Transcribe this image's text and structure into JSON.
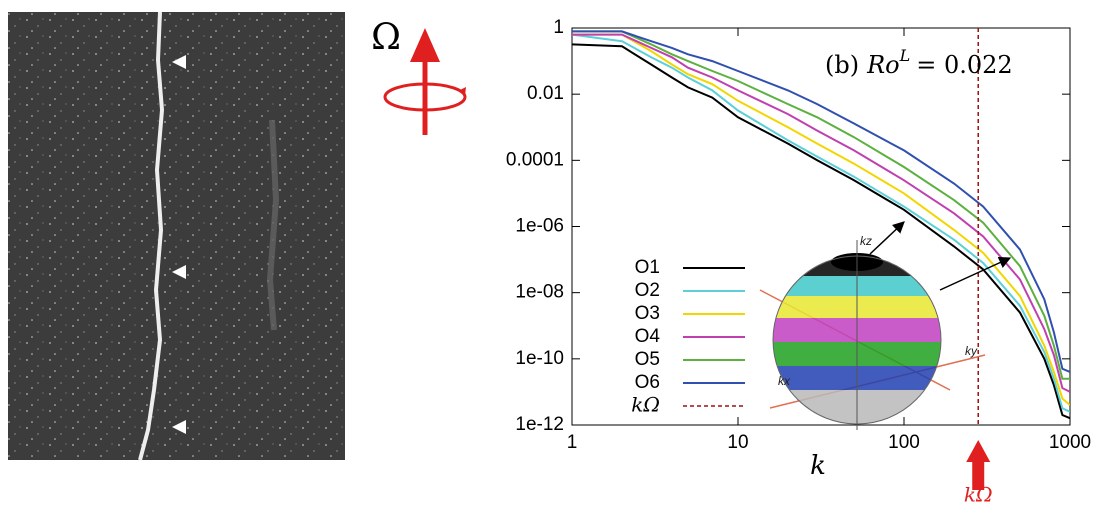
{
  "figure": {
    "omega_label": "Ω"
  },
  "chart_data": {
    "type": "line",
    "annotation": {
      "prefix": "(b)",
      "symbol": "Ro",
      "superscript": "L",
      "text": "= 0.022"
    },
    "x_label": "k",
    "xscale": "log",
    "yscale": "log",
    "xlim": [
      1,
      1000
    ],
    "ylim": [
      1e-12,
      1
    ],
    "xticks": [
      1,
      10,
      100,
      1000
    ],
    "yticks": [
      {
        "value": 1e-12,
        "label": "1e-12"
      },
      {
        "value": 1e-10,
        "label": "1e-10"
      },
      {
        "value": 1e-08,
        "label": "1e-08"
      },
      {
        "value": 1e-06,
        "label": "1e-06"
      },
      0.0001,
      0.01,
      1
    ],
    "x": [
      1,
      2,
      3,
      4,
      5,
      7,
      10,
      20,
      30,
      50,
      100,
      200,
      300,
      500,
      700,
      800,
      900,
      1000
    ],
    "series": [
      {
        "name": "O1",
        "color": "#000000",
        "values": [
          0.32,
          0.28,
          0.079,
          0.032,
          0.016,
          0.0079,
          0.002,
          0.00032,
          0.0001,
          2.5e-05,
          3.2e-06,
          2.5e-07,
          5e-08,
          2.5e-09,
          1e-10,
          1.6e-11,
          2e-12,
          1.6e-12
        ]
      },
      {
        "name": "O2",
        "color": "#5cd0d8",
        "values": [
          0.63,
          0.4,
          0.13,
          0.063,
          0.032,
          0.013,
          0.0032,
          0.0004,
          0.00013,
          3.2e-05,
          4e-06,
          4e-07,
          7.9e-08,
          4e-09,
          1.6e-10,
          2.5e-11,
          3.2e-12,
          2.5e-12
        ]
      },
      {
        "name": "O3",
        "color": "#f2d600",
        "values": [
          0.63,
          0.63,
          0.2,
          0.079,
          0.04,
          0.02,
          0.0063,
          0.001,
          0.00032,
          7.9e-05,
          1e-05,
          7.9e-07,
          1.6e-07,
          7.9e-09,
          2.5e-10,
          4e-11,
          6.3e-12,
          4e-12
        ]
      },
      {
        "name": "O4",
        "color": "#c040b0",
        "values": [
          0.63,
          0.63,
          0.25,
          0.13,
          0.063,
          0.032,
          0.013,
          0.0025,
          0.00079,
          0.0002,
          2.5e-05,
          2.5e-06,
          5e-07,
          2.5e-08,
          7.9e-10,
          1.3e-10,
          1.3e-11,
          1e-11
        ]
      },
      {
        "name": "O5",
        "color": "#5cb040",
        "values": [
          0.79,
          0.79,
          0.32,
          0.16,
          0.1,
          0.05,
          0.025,
          0.005,
          0.002,
          0.0005,
          6.3e-05,
          6.3e-06,
          1.3e-06,
          6.3e-08,
          2e-09,
          2.5e-10,
          2.5e-11,
          2.5e-11
        ]
      },
      {
        "name": "O6",
        "color": "#3050b0",
        "values": [
          0.79,
          0.79,
          0.4,
          0.25,
          0.16,
          0.1,
          0.05,
          0.013,
          0.005,
          0.0013,
          0.0002,
          2e-05,
          4e-06,
          2e-07,
          6.3e-09,
          6.3e-10,
          5e-11,
          4e-11
        ]
      }
    ],
    "k_omega": {
      "name": "kΩ",
      "value": 280,
      "color": "#a01010"
    },
    "inset": {
      "labels": [
        "kz",
        "kx",
        "ky"
      ]
    }
  }
}
